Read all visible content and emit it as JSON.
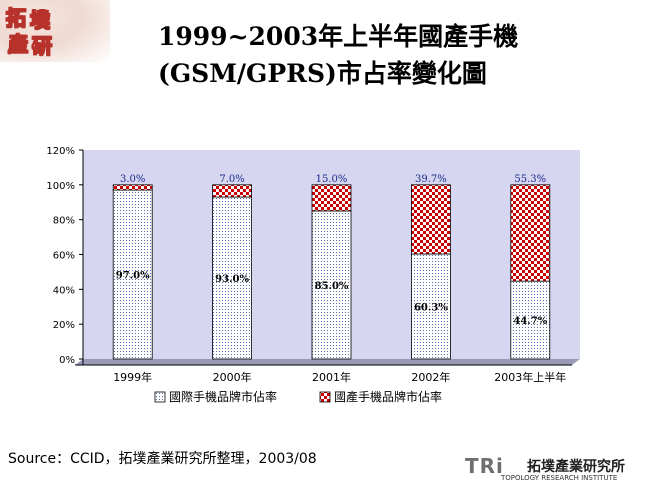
{
  "logo": {
    "char1": "拓",
    "char2": "墣",
    "char3": "產",
    "char4": "研"
  },
  "title_line1": "1999~2003年上半年國產手機",
  "title_line2": "(GSM/GPRS)市占率變化圖",
  "source": "Source：CCID，拓墣產業研究所整理，2003/08",
  "brand": {
    "tri": "TRi",
    "cn": "拓墣產業研究所",
    "en": "TOPOLOGY RESEARCH INSTITUTE"
  },
  "colors": {
    "international": "#e6e6ff",
    "domestic": "#cc0000",
    "plot_bg": "#d6d6f0"
  },
  "chart_data": {
    "type": "bar",
    "stacked": true,
    "categories": [
      "1999年",
      "2000年",
      "2001年",
      "2002年",
      "2003年上半年"
    ],
    "series": [
      {
        "name": "國際手機品牌市佔率",
        "values": [
          97.0,
          93.0,
          85.0,
          60.3,
          44.7
        ],
        "labels": [
          "97.0%",
          "93.0%",
          "85.0%",
          "60.3%",
          "44.7%"
        ]
      },
      {
        "name": "國產手機品牌市佔率",
        "values": [
          3.0,
          7.0,
          15.0,
          39.7,
          55.3
        ],
        "labels": [
          "3.0%",
          "7.0%",
          "15.0%",
          "39.7%",
          "55.3%"
        ]
      }
    ],
    "ylim": [
      0,
      120
    ],
    "yticks": [
      "0%",
      "20%",
      "40%",
      "60%",
      "80%",
      "100%",
      "120%"
    ],
    "grid": false,
    "legend": "bottom"
  }
}
